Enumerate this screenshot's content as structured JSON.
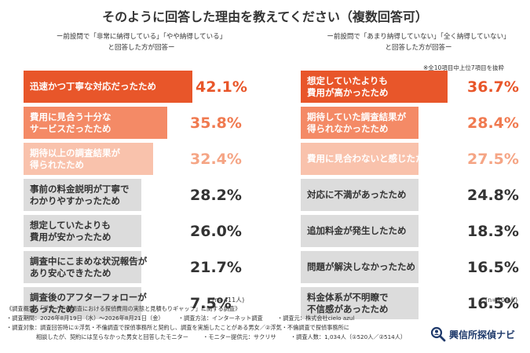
{
  "title": "そのように回答した理由を教えてください（複数回答可）",
  "colors": {
    "rank1": "#e8562a",
    "rank2": "#f48a66",
    "rank3": "#f9c2ac",
    "rank1_value": "#e8562a",
    "rank2_value": "#f07a50",
    "rank3_value": "#f5a585",
    "other": "#dcdcdc",
    "text_dark": "#333333",
    "text_white": "#ffffff"
  },
  "chart_data": [
    {
      "type": "bar",
      "orientation": "horizontal",
      "caption_line1": "ー前設問で「非常に納得している」「やや納得している」",
      "caption_line2": "と回答した方が回答ー",
      "n_label": "(n=411人)",
      "categories": [
        "迅速かつ丁寧な対応だったため",
        "費用に見合う十分な\nサービスだったため",
        "期待以上の調査結果が\n得られたため",
        "事前の料金説明が丁寧で\nわかりやすかったため",
        "想定していたよりも\n費用が安かったため",
        "調査中にこまめな状況報告が\nあり安心できたため",
        "調査後のアフターフォローが\nあったため"
      ],
      "values": [
        42.1,
        35.8,
        32.4,
        28.2,
        26.0,
        21.7,
        7.5
      ],
      "value_labels": [
        "42.1%",
        "35.8%",
        "32.4%",
        "28.2%",
        "26.0%",
        "21.7%",
        "7.5%"
      ],
      "xlim": [
        0,
        100
      ]
    },
    {
      "type": "bar",
      "orientation": "horizontal",
      "caption_line1": "ー前設問で「あまり納得していない」「全く納得していない」",
      "caption_line2": "と回答した方が回答ー",
      "footnote": "※全10項目中上位7項目を抜粋",
      "n_label": "(n=109人)",
      "categories": [
        "想定していたよりも\n費用が高かったため",
        "期待していた調査結果が\n得られなかったため",
        "費用に見合わないと感じたため",
        "対応に不満があったため",
        "追加料金が発生したため",
        "問題が解決しなかったため",
        "料金体系が不明瞭で\n不信感があったため"
      ],
      "values": [
        36.7,
        28.4,
        27.5,
        24.8,
        18.3,
        16.5,
        16.5
      ],
      "value_labels": [
        "36.7%",
        "28.4%",
        "27.5%",
        "24.8%",
        "18.3%",
        "16.5%",
        "16.5%"
      ],
      "xlim": [
        0,
        100
      ]
    }
  ],
  "survey": {
    "line1": "《調査概要：「浮気・不倫調査における探偵費用の実態と見積もりギャップ」に関する調査》",
    "period": "・調査期間：2026年8月19日（水）〜2026年8月21日（金）",
    "method": "・調査方法：インターネット調査",
    "source": "・調査元：株式会社cielo azul",
    "target1": "・調査対象：調査回答時に①浮気・不倫調査で探偵事務所と契約し、調査を実施したことがある男女／②浮気・不倫調査で探偵事務所に",
    "target2": "相談したが、契約には至らなかった男女と回答したモニター",
    "monitor": "・モニター提供元：サクリサ",
    "count": "・調査人数：1,034人（①520人／②514人）"
  },
  "logo": {
    "text": "興信所探偵ナビ",
    "icon": "magnifier-person-icon"
  }
}
